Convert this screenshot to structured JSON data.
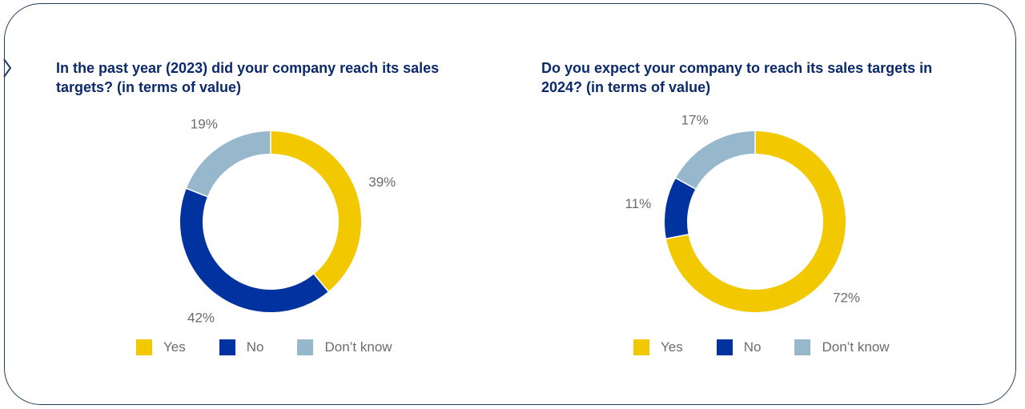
{
  "colors": {
    "yes": "#f2c800",
    "no": "#0033a0",
    "dont_know": "#97b8cc",
    "title": "#0b2a6b",
    "frame": "#1f3a5f"
  },
  "icons": {
    "nav": "chevron-right-icon"
  },
  "chart_data": [
    {
      "type": "donut",
      "title": "In the past year (2023) did your company reach its sales targets? (in terms of value)",
      "categories": [
        "Yes",
        "No",
        "Don’t know"
      ],
      "values": [
        39,
        42,
        19
      ],
      "labels": [
        "39%",
        "42%",
        "19%"
      ],
      "legend_placement": "bottom"
    },
    {
      "type": "donut",
      "title": "Do you expect your company to reach its sales targets in 2024? (in terms of value)",
      "categories": [
        "Yes",
        "No",
        "Don’t know"
      ],
      "values": [
        72,
        11,
        17
      ],
      "labels": [
        "72%",
        "11%",
        "17%"
      ],
      "legend_placement": "bottom"
    }
  ]
}
